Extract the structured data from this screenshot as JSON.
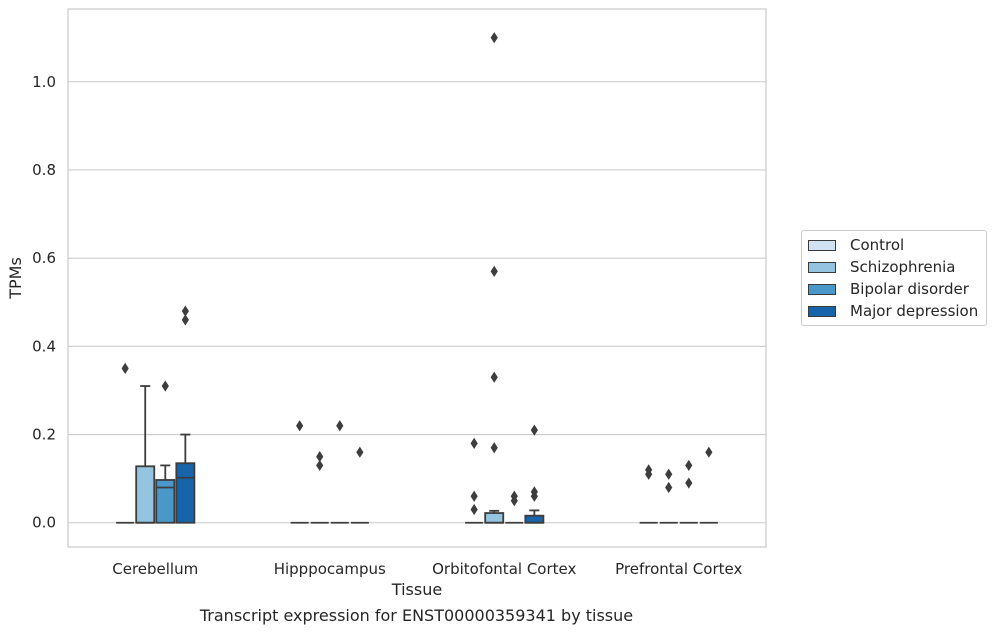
{
  "caption": "Transcript expression for ENST00000359341 by tissue",
  "chart_data": {
    "type": "box",
    "title": "",
    "xlabel": "Tissue",
    "ylabel": "TPMs",
    "ylim": [
      -0.055,
      1.165
    ],
    "yticks": [
      0.0,
      0.2,
      0.4,
      0.6,
      0.8,
      1.0
    ],
    "ytick_labels": [
      "0.0",
      "0.2",
      "0.4",
      "0.6",
      "0.8",
      "1.0"
    ],
    "grid": "horizontal",
    "legend_position": "right",
    "categories": [
      "Cerebellum",
      "Hipppocampus",
      "Orbitofontal Cortex",
      "Prefrontal Cortex"
    ],
    "series": [
      {
        "name": "Control",
        "color": "#d0e1f2",
        "boxes": [
          {
            "q1": 0.0,
            "median": 0.0,
            "q3": 0.0,
            "whislo": 0.0,
            "whishi": 0.0,
            "outliers": [
              0.35
            ]
          },
          {
            "q1": 0.0,
            "median": 0.0,
            "q3": 0.0,
            "whislo": 0.0,
            "whishi": 0.0,
            "outliers": [
              0.22
            ]
          },
          {
            "q1": 0.0,
            "median": 0.0,
            "q3": 0.0,
            "whislo": 0.0,
            "whishi": 0.0,
            "outliers": [
              0.18,
              0.06,
              0.03
            ]
          },
          {
            "q1": 0.0,
            "median": 0.0,
            "q3": 0.0,
            "whislo": 0.0,
            "whishi": 0.0,
            "outliers": [
              0.12,
              0.11
            ]
          }
        ]
      },
      {
        "name": "Schizophrenia",
        "color": "#94c4df",
        "boxes": [
          {
            "q1": 0.0,
            "median": 0.0,
            "q3": 0.128,
            "whislo": 0.0,
            "whishi": 0.31,
            "outliers": []
          },
          {
            "q1": 0.0,
            "median": 0.0,
            "q3": 0.0,
            "whislo": 0.0,
            "whishi": 0.0,
            "outliers": [
              0.15,
              0.13
            ]
          },
          {
            "q1": 0.0,
            "median": 0.0,
            "q3": 0.022,
            "whislo": 0.0,
            "whishi": 0.027,
            "outliers": [
              1.1,
              0.57,
              0.33,
              0.17
            ]
          },
          {
            "q1": 0.0,
            "median": 0.0,
            "q3": 0.0,
            "whislo": 0.0,
            "whishi": 0.0,
            "outliers": [
              0.11,
              0.08
            ]
          }
        ]
      },
      {
        "name": "Bipolar disorder",
        "color": "#4a98c9",
        "boxes": [
          {
            "q1": 0.0,
            "median": 0.08,
            "q3": 0.097,
            "whislo": 0.0,
            "whishi": 0.13,
            "outliers": [
              0.31
            ]
          },
          {
            "q1": 0.0,
            "median": 0.0,
            "q3": 0.0,
            "whislo": 0.0,
            "whishi": 0.0,
            "outliers": [
              0.22
            ]
          },
          {
            "q1": 0.0,
            "median": 0.0,
            "q3": 0.0,
            "whislo": 0.0,
            "whishi": 0.0,
            "outliers": [
              0.06,
              0.05
            ]
          },
          {
            "q1": 0.0,
            "median": 0.0,
            "q3": 0.0,
            "whislo": 0.0,
            "whishi": 0.0,
            "outliers": [
              0.13,
              0.09
            ]
          }
        ]
      },
      {
        "name": "Major depression",
        "color": "#1764ab",
        "boxes": [
          {
            "q1": 0.0,
            "median": 0.102,
            "q3": 0.135,
            "whislo": 0.0,
            "whishi": 0.2,
            "outliers": [
              0.48,
              0.46
            ]
          },
          {
            "q1": 0.0,
            "median": 0.0,
            "q3": 0.0,
            "whislo": 0.0,
            "whishi": 0.0,
            "outliers": [
              0.16
            ]
          },
          {
            "q1": 0.0,
            "median": 0.0,
            "q3": 0.016,
            "whislo": 0.0,
            "whishi": 0.028,
            "outliers": [
              0.21,
              0.07,
              0.06
            ]
          },
          {
            "q1": 0.0,
            "median": 0.0,
            "q3": 0.0,
            "whislo": 0.0,
            "whishi": 0.0,
            "outliers": [
              0.16
            ]
          }
        ]
      }
    ]
  }
}
